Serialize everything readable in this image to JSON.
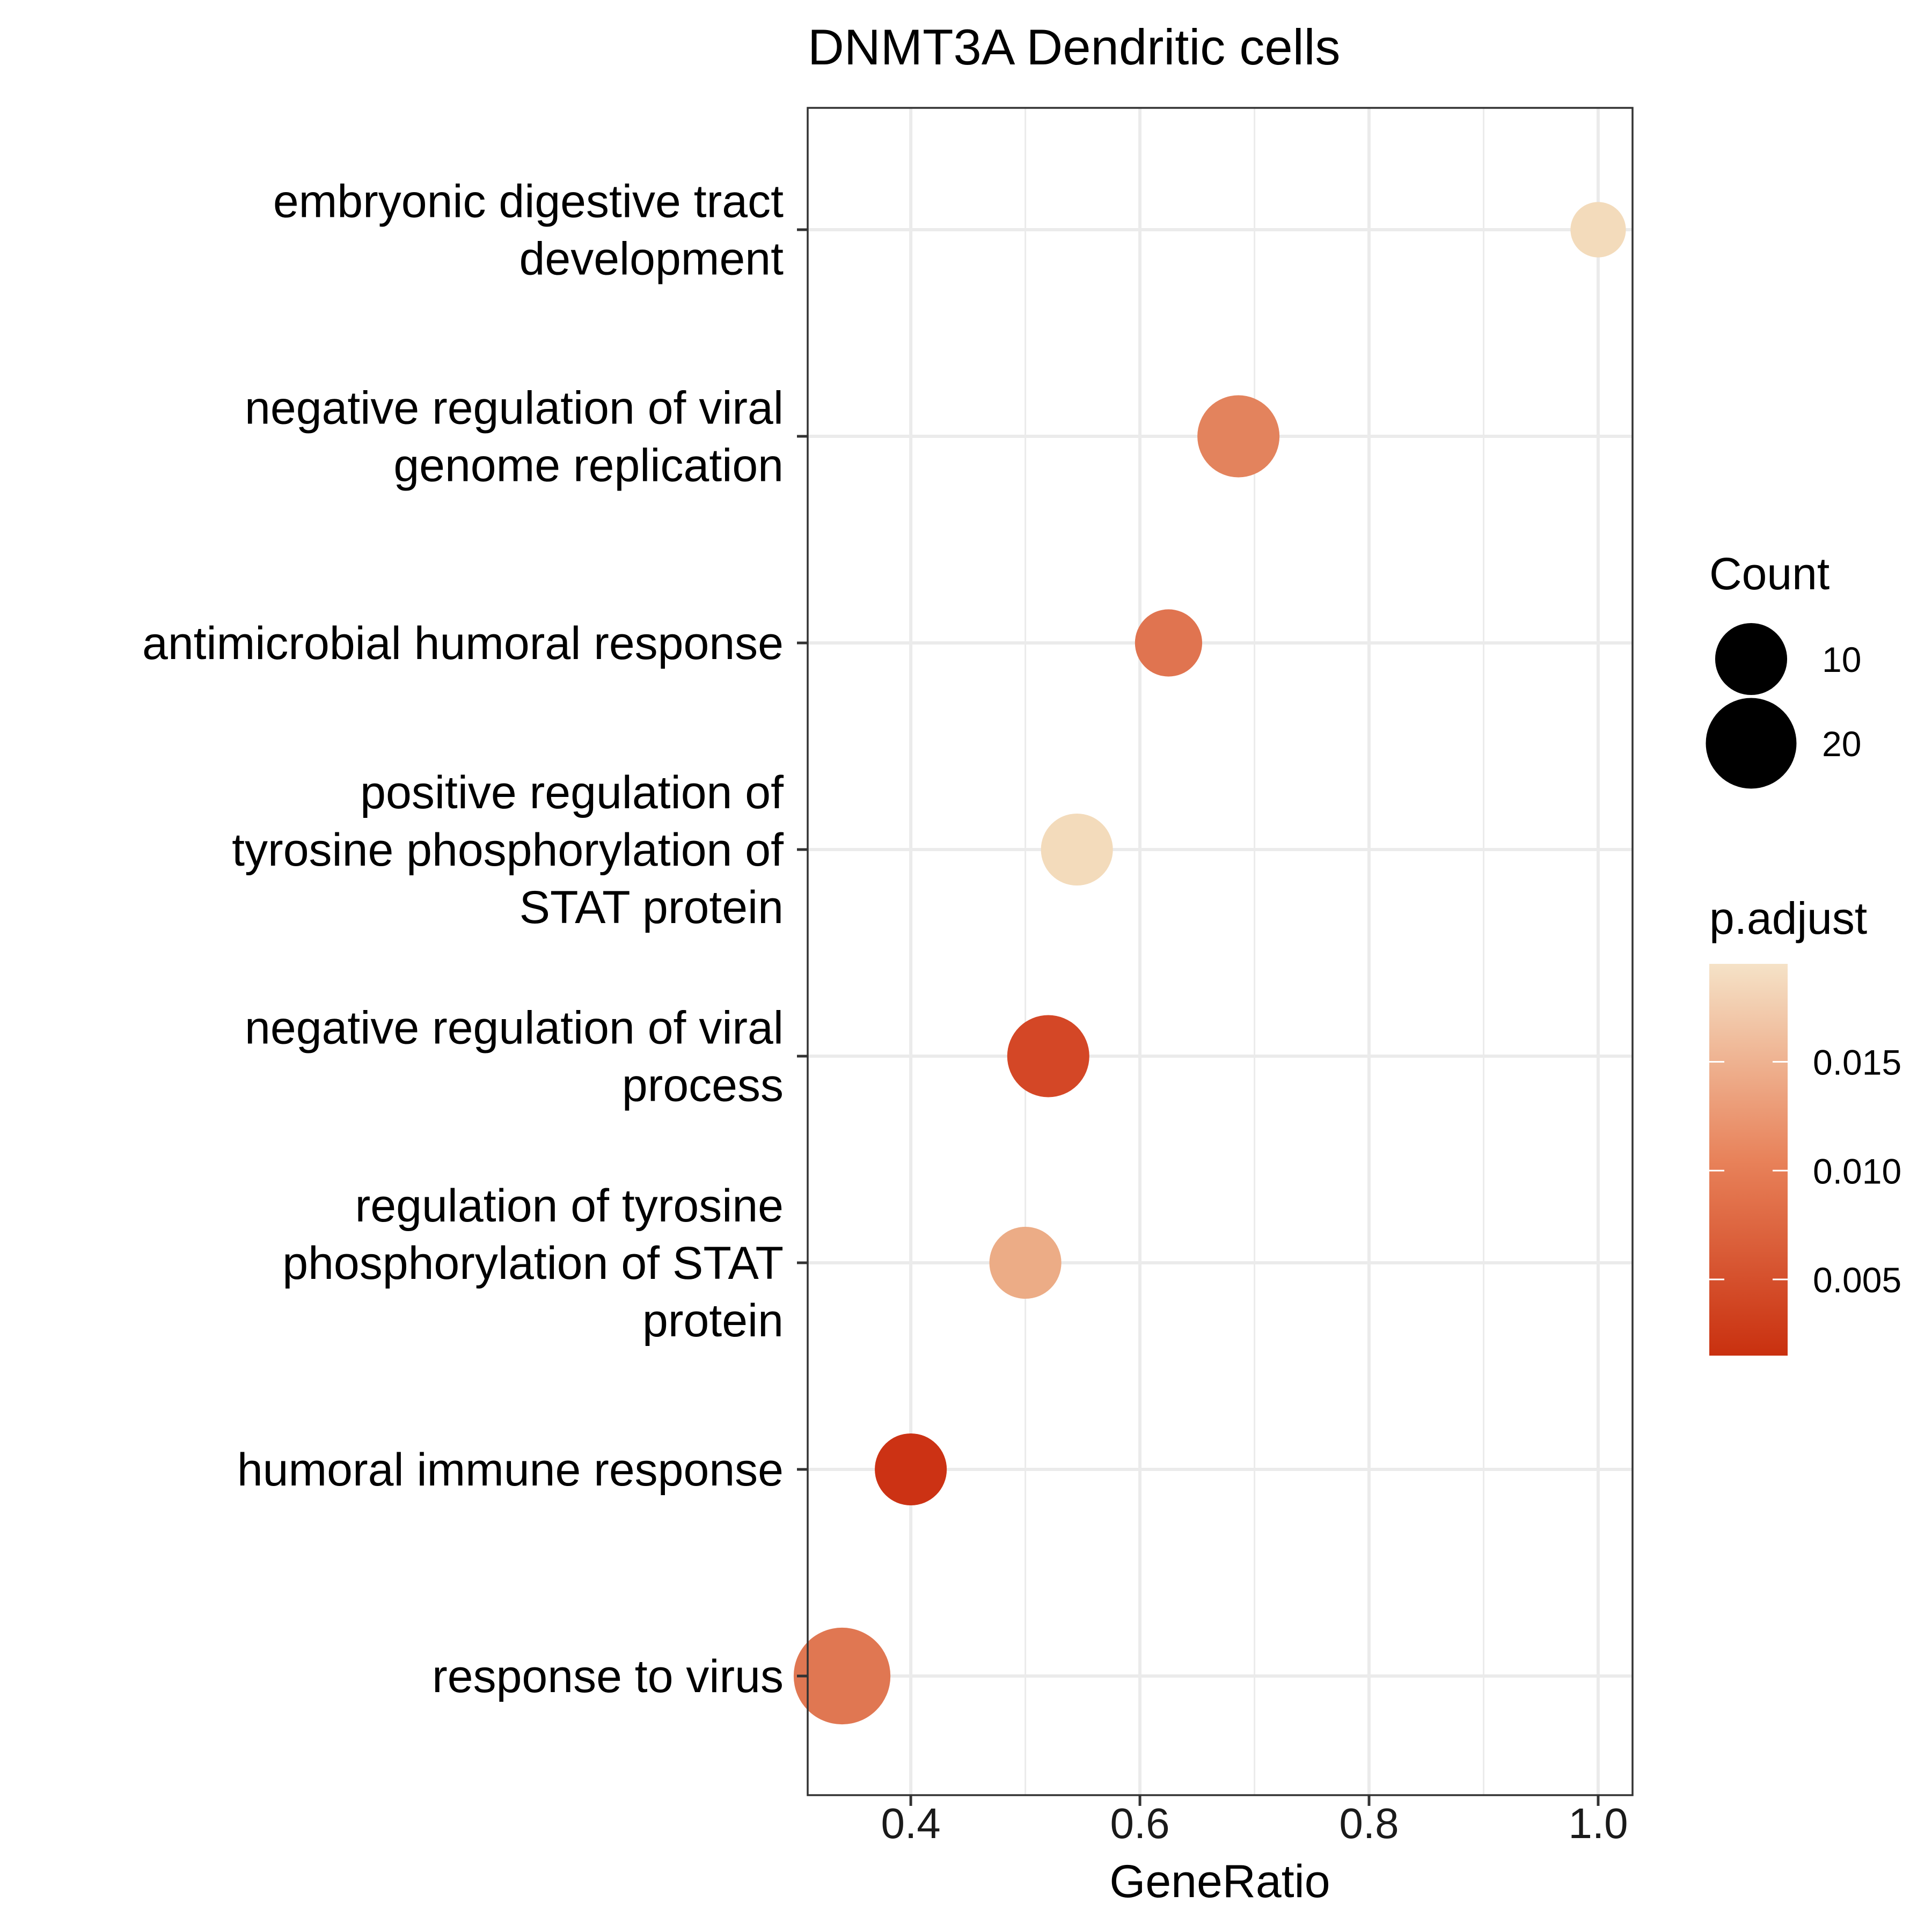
{
  "chart_data": {
    "type": "scatter",
    "title": "DNMT3A Dendritic cells",
    "xlabel": "GeneRatio",
    "ylabel": "",
    "xlim": [
      0.31,
      1.03
    ],
    "x_ticks": [
      "0.4",
      "0.6",
      "0.8",
      "1.0"
    ],
    "x_tick_values": [
      0.4,
      0.6,
      0.8,
      1.0
    ],
    "grid": true,
    "points": [
      {
        "category": "embryonic digestive tract development",
        "lines": [
          "embryonic digestive tract",
          "development"
        ],
        "gene_ratio": 1.0,
        "count": 4,
        "p_adjust": 0.0185,
        "color": "#f3dbbb"
      },
      {
        "category": "negative regulation of viral genome replication",
        "lines": [
          "negative regulation of viral",
          "genome replication"
        ],
        "gene_ratio": 0.686,
        "count": 15,
        "p_adjust": 0.0105,
        "color": "#e3835d"
      },
      {
        "category": "antimicrobial humoral response",
        "lines": [
          "antimicrobial humoral response"
        ],
        "gene_ratio": 0.625,
        "count": 8,
        "p_adjust": 0.009,
        "color": "#e07450"
      },
      {
        "category": "positive regulation of tyrosine phosphorylation of STAT protein",
        "lines": [
          "positive regulation of",
          "tyrosine phosphorylation of",
          "STAT protein"
        ],
        "gene_ratio": 0.545,
        "count": 10,
        "p_adjust": 0.019,
        "color": "#f3dbbb"
      },
      {
        "category": "negative regulation of viral process",
        "lines": [
          "negative regulation of viral",
          "process"
        ],
        "gene_ratio": 0.52,
        "count": 15,
        "p_adjust": 0.004,
        "color": "#d44726"
      },
      {
        "category": "regulation of tyrosine phosphorylation of STAT protein",
        "lines": [
          "regulation of tyrosine",
          "phosphorylation of STAT",
          "protein"
        ],
        "gene_ratio": 0.5,
        "count": 10,
        "p_adjust": 0.013,
        "color": "#ecac86"
      },
      {
        "category": "humoral immune response",
        "lines": [
          "humoral immune response"
        ],
        "gene_ratio": 0.4,
        "count": 10,
        "p_adjust": 0.0015,
        "color": "#cc3214"
      },
      {
        "category": "response to virus",
        "lines": [
          "response to virus"
        ],
        "gene_ratio": 0.34,
        "count": 24,
        "p_adjust": 0.01,
        "color": "#e07752"
      }
    ],
    "legend_count": {
      "title": "Count",
      "values": [
        10,
        20
      ],
      "labels": [
        "10",
        "20"
      ]
    },
    "legend_padjust": {
      "title": "p.adjust",
      "range": [
        0.0015,
        0.0195
      ],
      "ticks": [
        0.005,
        0.01,
        0.015
      ],
      "tick_labels": [
        "0.005",
        "0.010",
        "0.015"
      ],
      "color_low": "#c9300f",
      "color_mid": "#e8825a",
      "color_high": "#f5e2c7"
    }
  }
}
